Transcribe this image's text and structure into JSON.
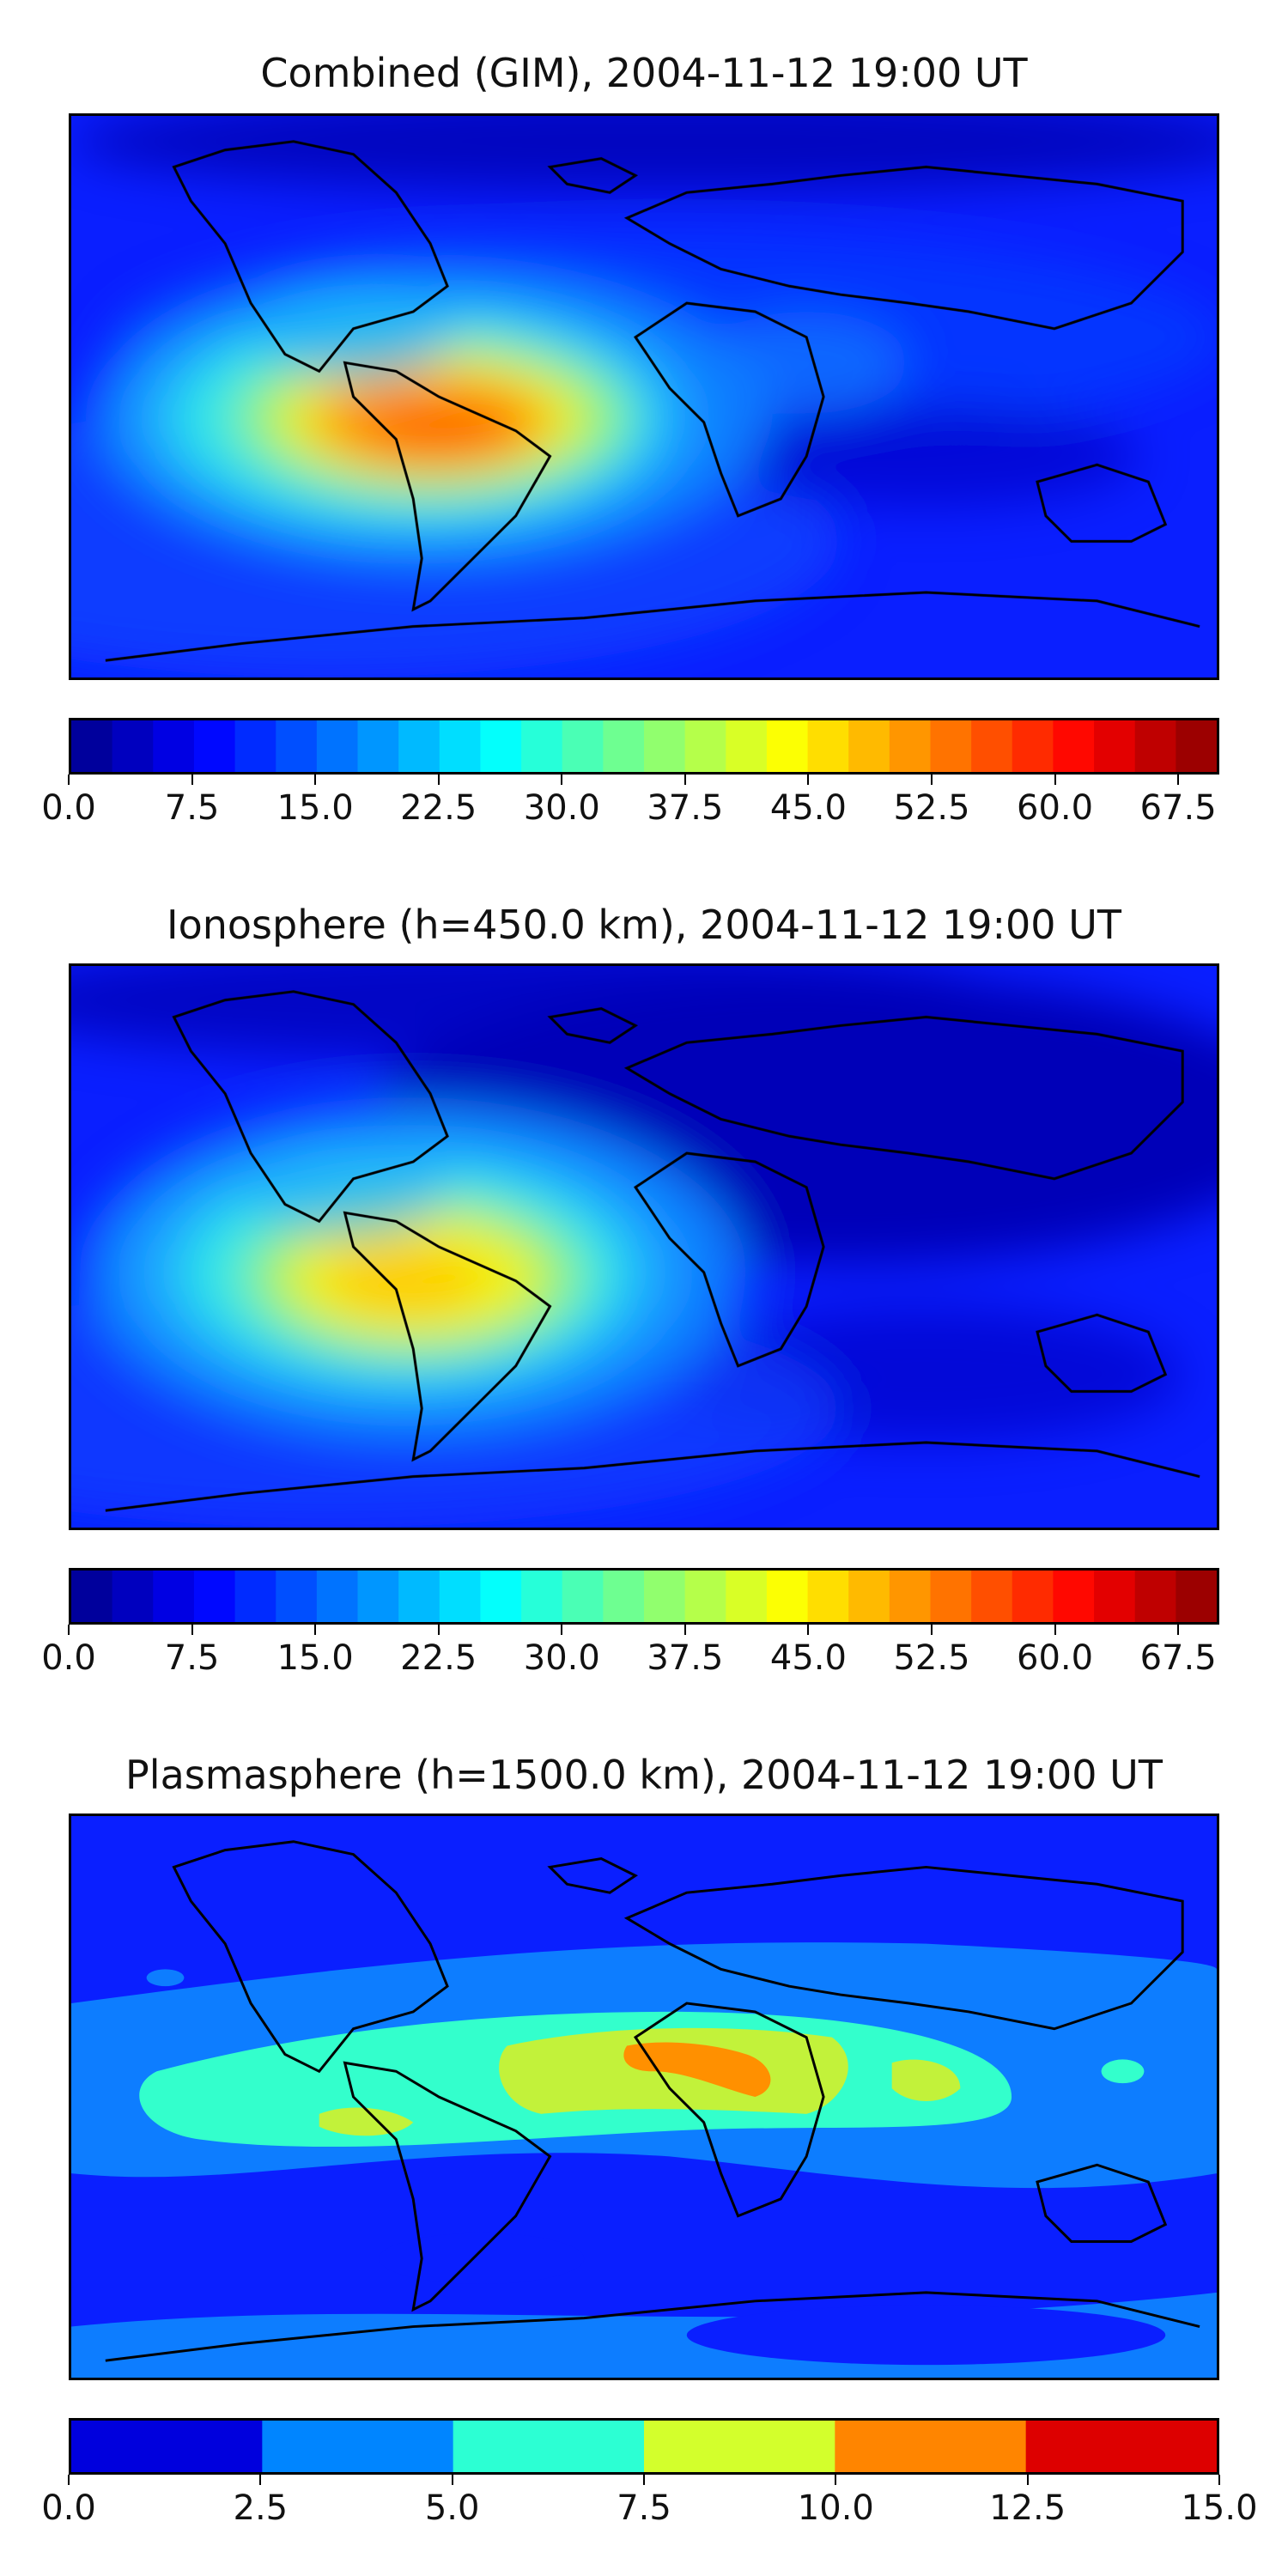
{
  "chart_data": [
    {
      "type": "heatmap",
      "title": "Combined (GIM), 2004-11-12 19:00 UT",
      "colorbar": {
        "range": [
          0.0,
          70.0
        ],
        "levels": 28,
        "ticks": [
          "0.0",
          "7.5",
          "15.0",
          "22.5",
          "30.0",
          "37.5",
          "45.0",
          "52.5",
          "60.0",
          "67.5"
        ],
        "tick_values": [
          0.0,
          7.5,
          15.0,
          22.5,
          30.0,
          37.5,
          45.0,
          52.5,
          60.0,
          67.5
        ]
      },
      "peak_region": "South America / Atlantic",
      "peak_value": 57.5
    },
    {
      "type": "heatmap",
      "title": "Ionosphere  (h=450.0 km), 2004-11-12 19:00 UT",
      "colorbar": {
        "range": [
          0.0,
          70.0
        ],
        "levels": 28,
        "ticks": [
          "0.0",
          "7.5",
          "15.0",
          "22.5",
          "30.0",
          "37.5",
          "45.0",
          "52.5",
          "60.0",
          "67.5"
        ],
        "tick_values": [
          0.0,
          7.5,
          15.0,
          22.5,
          30.0,
          37.5,
          45.0,
          52.5,
          60.0,
          67.5
        ]
      },
      "peak_region": "South America",
      "peak_value": 50.0
    },
    {
      "type": "heatmap",
      "title": "Plasmasphere (h=1500.0 km), 2004-11-12 19:00 UT",
      "colorbar": {
        "range": [
          0.0,
          15.0
        ],
        "levels": 6,
        "ticks": [
          "0.0",
          "2.5",
          "5.0",
          "7.5",
          "10.0",
          "12.5",
          "15.0"
        ],
        "tick_values": [
          0.0,
          2.5,
          5.0,
          7.5,
          10.0,
          12.5,
          15.0
        ]
      },
      "peak_region": "Africa",
      "peak_value": 11.0
    }
  ],
  "colormap": "jet"
}
